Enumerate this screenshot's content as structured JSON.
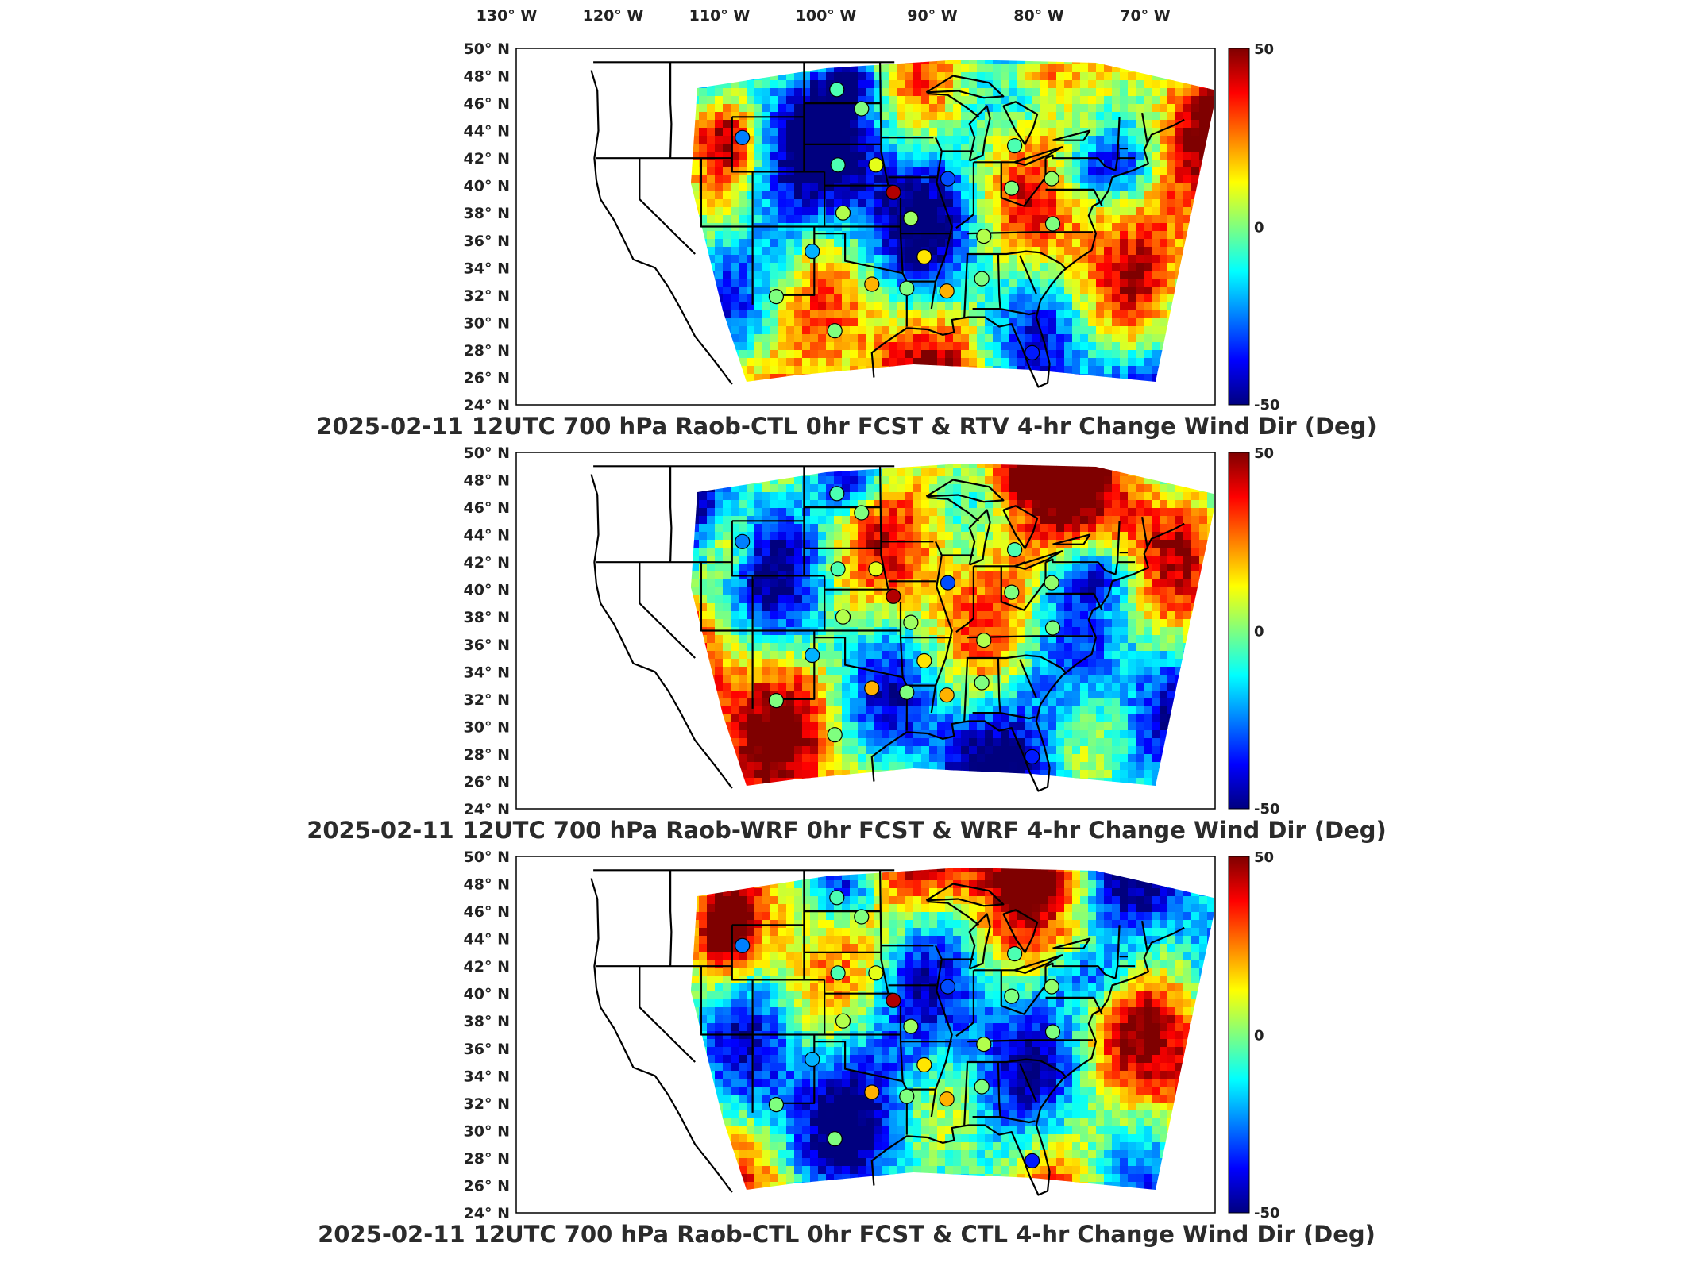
{
  "figure": {
    "lon_labels": [
      "130° W",
      "120° W",
      "110° W",
      "100° W",
      "90° W",
      "80° W",
      "70° W"
    ],
    "lat_labels": [
      "50° N",
      "48° N",
      "46° N",
      "44° N",
      "42° N",
      "40° N",
      "38° N",
      "36° N",
      "34° N",
      "32° N",
      "30° N",
      "28° N",
      "26° N",
      "24° N"
    ],
    "colorbar": {
      "max_label": "50",
      "mid_label": "0",
      "min_label": "-50",
      "min": -50,
      "max": 50
    },
    "colormap": [
      "#00007f",
      "#0000ff",
      "#007fff",
      "#00ffff",
      "#7fff7f",
      "#ffff00",
      "#ff7f00",
      "#ff0000",
      "#7f0000"
    ]
  },
  "panels": [
    {
      "id": "rtv",
      "title": "2025-02-11 12UTC 700 hPa Raob-CTL 0hr FCST & RTV 4-hr Change Wind Dir (Deg)"
    },
    {
      "id": "wrf",
      "title": "2025-02-11 12UTC 700 hPa Raob-WRF 0hr FCST & WRF 4-hr Change Wind Dir (Deg)"
    },
    {
      "id": "ctl",
      "title": "2025-02-11 12UTC 700 hPa Raob-CTL 0hr FCST & CTL 4-hr Change Wind Dir (Deg)"
    }
  ],
  "raob_stations": [
    {
      "lon": -100.8,
      "lat": 47.0,
      "value": -5
    },
    {
      "lon": -98.4,
      "lat": 45.6,
      "value": 0
    },
    {
      "lon": -110.0,
      "lat": 43.5,
      "value": -25
    },
    {
      "lon": -100.7,
      "lat": 41.5,
      "value": -5
    },
    {
      "lon": -97.0,
      "lat": 41.5,
      "value": 10
    },
    {
      "lon": -95.3,
      "lat": 39.5,
      "value": 45
    },
    {
      "lon": -90.0,
      "lat": 40.5,
      "value": -30
    },
    {
      "lon": -83.5,
      "lat": 42.9,
      "value": -5
    },
    {
      "lon": -83.8,
      "lat": 39.8,
      "value": 0
    },
    {
      "lon": -79.9,
      "lat": 40.5,
      "value": 2
    },
    {
      "lon": -100.2,
      "lat": 38.0,
      "value": 5
    },
    {
      "lon": -93.6,
      "lat": 37.6,
      "value": 3
    },
    {
      "lon": -86.5,
      "lat": 36.3,
      "value": 5
    },
    {
      "lon": -79.8,
      "lat": 37.2,
      "value": 0
    },
    {
      "lon": -103.2,
      "lat": 35.2,
      "value": -20
    },
    {
      "lon": -92.3,
      "lat": 34.8,
      "value": 15
    },
    {
      "lon": -97.4,
      "lat": 32.8,
      "value": 20
    },
    {
      "lon": -94.0,
      "lat": 32.5,
      "value": 0
    },
    {
      "lon": -90.1,
      "lat": 32.3,
      "value": 20
    },
    {
      "lon": -86.7,
      "lat": 33.2,
      "value": 0
    },
    {
      "lon": -106.7,
      "lat": 31.9,
      "value": 0
    },
    {
      "lon": -101.0,
      "lat": 29.4,
      "value": 0
    },
    {
      "lon": -81.8,
      "lat": 27.8,
      "value": -35
    }
  ]
}
